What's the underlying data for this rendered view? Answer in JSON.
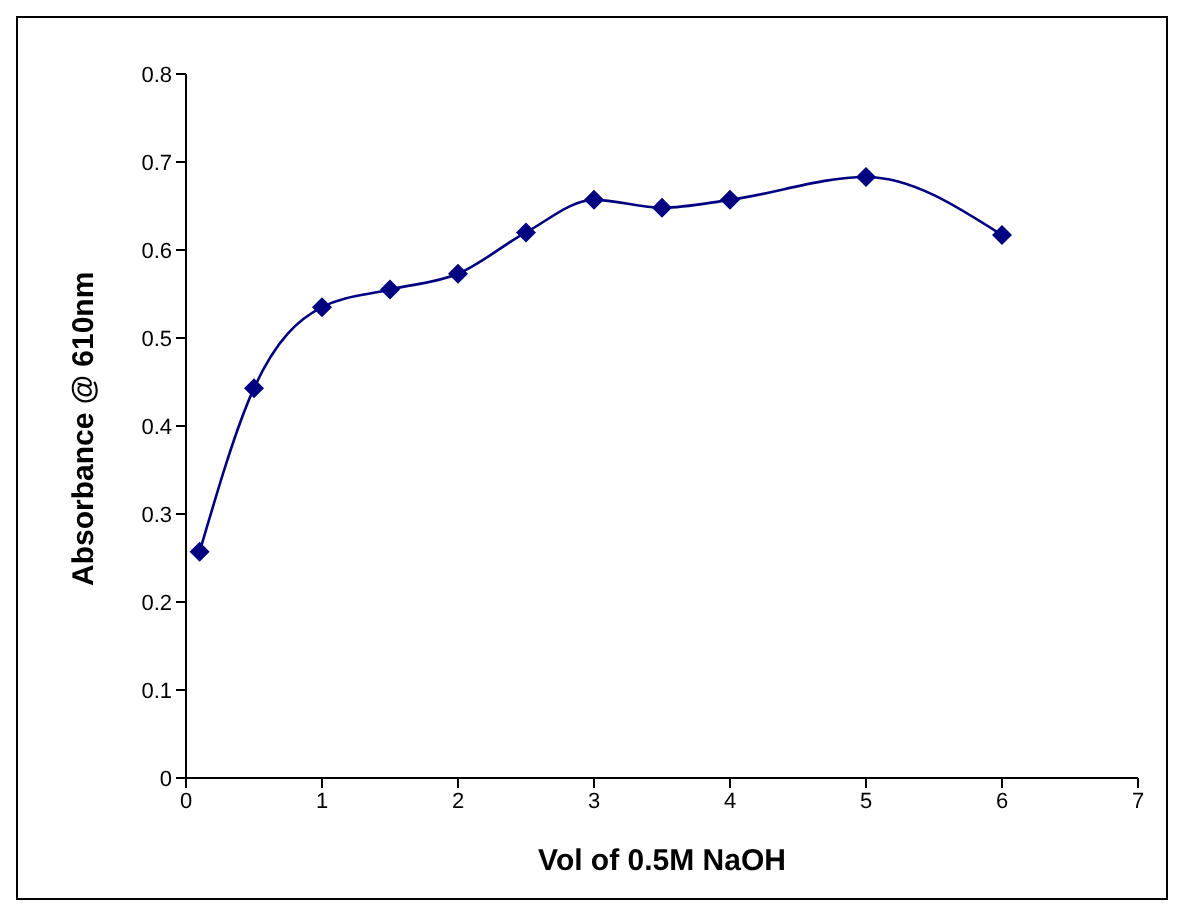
{
  "chart_data": {
    "type": "line",
    "xlabel": "Vol of 0.5M NaOH",
    "ylabel": "Absorbance @ 610nm",
    "x": [
      0.1,
      0.5,
      1,
      1.5,
      2,
      2.5,
      3,
      3.5,
      4,
      5,
      6
    ],
    "series": [
      {
        "color": "#000080",
        "values": [
          0.257,
          0.443,
          0.535,
          0.555,
          0.573,
          0.62,
          0.657,
          0.648,
          0.657,
          0.683,
          0.617
        ]
      }
    ],
    "xlim": [
      0,
      7
    ],
    "xticks": [
      0,
      1,
      2,
      3,
      4,
      5,
      6,
      7
    ],
    "ylim": [
      0,
      0.8
    ],
    "yticks": [
      0,
      0.1,
      0.2,
      0.3,
      0.4,
      0.5,
      0.6,
      0.7,
      0.8
    ],
    "marker": "diamond",
    "line_style": "solid",
    "grid": false,
    "legend": false
  }
}
